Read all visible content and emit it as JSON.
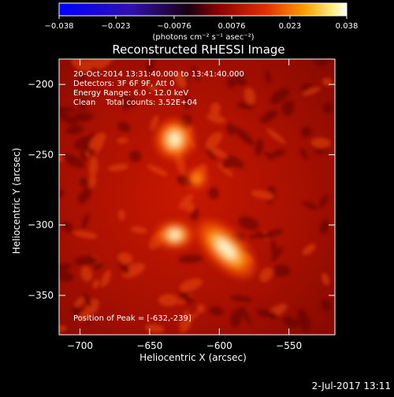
{
  "chart_data": {
    "type": "heatmap",
    "title": "Reconstructed RHESSI Image",
    "xlabel": "Heliocentric X (arcsec)",
    "ylabel": "Heliocentric Y (arcsec)",
    "xlim": [
      -715,
      -517
    ],
    "ylim": [
      -378,
      -182
    ],
    "xticks": [
      -700,
      -650,
      -600,
      -550
    ],
    "xtick_labels": [
      "−700",
      "−650",
      "−600",
      "−550"
    ],
    "yticks": [
      -200,
      -250,
      -300,
      -350
    ],
    "ytick_labels": [
      "−200",
      "−250",
      "−300",
      "−350"
    ],
    "colorbar": {
      "range": [
        -0.038,
        0.038
      ],
      "ticks": [
        -0.038,
        -0.023,
        -0.0076,
        0.0076,
        0.023,
        0.038
      ],
      "tick_labels": [
        "−0.038",
        "−0.023",
        "−0.0076",
        "0.0076",
        "0.023",
        "0.038"
      ],
      "unit_label": "(photons cm⁻² s⁻¹ asec⁻²)",
      "colormap": "blue-purple-red-orange-yellow-white"
    },
    "annotations": [
      "20-Oct-2014 13:31:40.000 to 13:41:40.000",
      "Detectors: 3F 6F 9F, Att 0",
      "Energy Range: 6.0 - 12.0 keV",
      "Clean    Total counts: 3.52E+04"
    ],
    "peak_label": "Position of Peak = [-632,-239]",
    "sources": [
      {
        "x": -632,
        "y": -239,
        "peak": 0.038
      },
      {
        "x": -595,
        "y": -317,
        "peak": 0.034
      },
      {
        "x": -632,
        "y": -307,
        "peak": 0.028
      },
      {
        "x": -616,
        "y": -267,
        "peak": 0.016
      }
    ],
    "grid": false
  },
  "footer": {
    "date": "2-Jul-2017 13:11"
  }
}
